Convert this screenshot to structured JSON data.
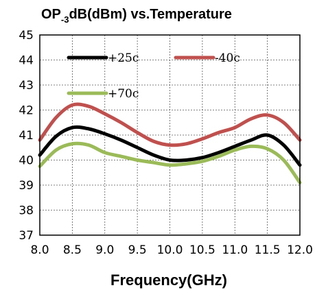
{
  "chart_data": {
    "type": "line",
    "title_main": "OP",
    "title_sub": "-3",
    "title_rest": "dB(dBm) vs.Temperature",
    "xlabel": "Frequency(GHz)",
    "ylabel": "",
    "xlim": [
      8.0,
      12.0
    ],
    "ylim": [
      37,
      45
    ],
    "grid": true,
    "legend": "top-left, inside plot",
    "x_ticks": [
      "8.0",
      "8.5",
      "9.0",
      "9.5",
      "10.0",
      "10.5",
      "11.0",
      "11.5",
      "12.0"
    ],
    "y_ticks": [
      "37",
      "38",
      "39",
      "40",
      "41",
      "42",
      "43",
      "44",
      "45"
    ],
    "x": [
      8.0,
      8.25,
      8.5,
      8.75,
      9.0,
      9.25,
      9.5,
      9.75,
      10.0,
      10.25,
      10.5,
      10.75,
      11.0,
      11.25,
      11.5,
      11.75,
      12.0
    ],
    "series": [
      {
        "name": "+25c",
        "color": "#000000",
        "values": [
          40.2,
          40.95,
          41.3,
          41.25,
          41.05,
          40.8,
          40.5,
          40.2,
          40.0,
          40.0,
          40.1,
          40.3,
          40.55,
          40.8,
          41.0,
          40.6,
          39.8
        ]
      },
      {
        "name": "-40c",
        "color": "#c0504d",
        "values": [
          40.8,
          41.7,
          42.2,
          42.15,
          41.85,
          41.5,
          41.1,
          40.75,
          40.6,
          40.65,
          40.85,
          41.1,
          41.3,
          41.65,
          41.8,
          41.5,
          40.8
        ]
      },
      {
        "name": "+70c",
        "color": "#9bbb59",
        "values": [
          39.75,
          40.4,
          40.65,
          40.6,
          40.3,
          40.15,
          40.0,
          39.9,
          39.8,
          39.85,
          39.95,
          40.15,
          40.4,
          40.55,
          40.45,
          40.0,
          39.1
        ]
      }
    ]
  }
}
